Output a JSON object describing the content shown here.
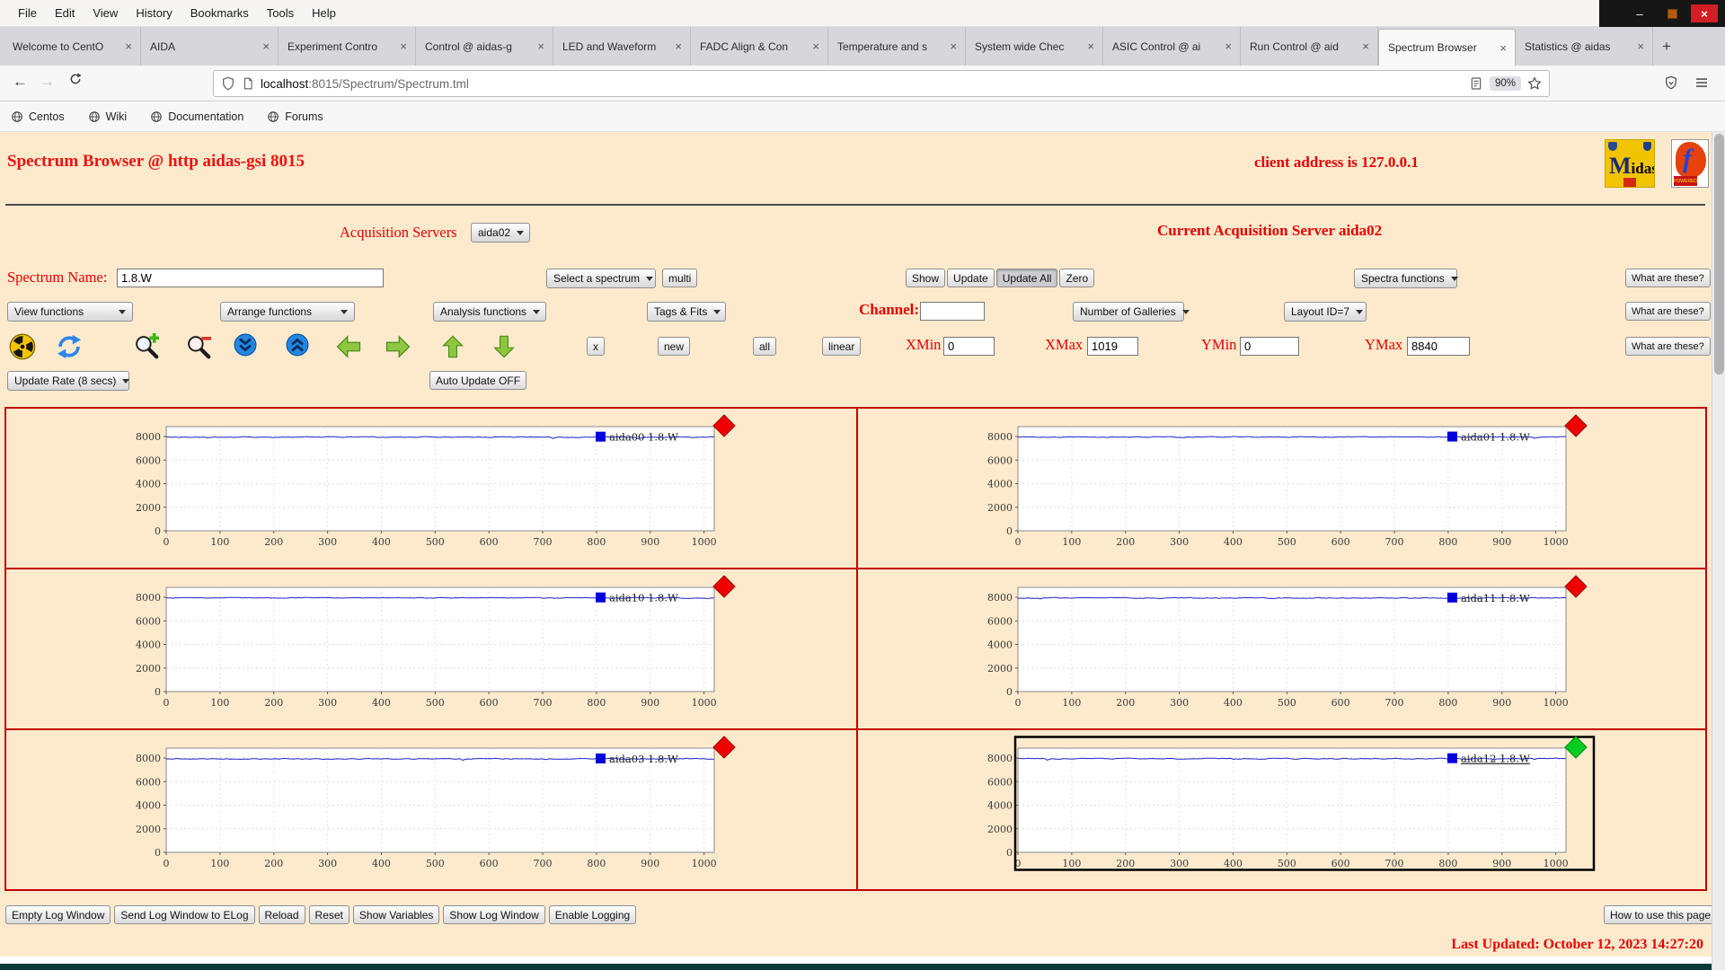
{
  "browser": {
    "menu": [
      "File",
      "Edit",
      "View",
      "History",
      "Bookmarks",
      "Tools",
      "Help"
    ],
    "tabs": [
      {
        "label": "Welcome to CentO",
        "active": false
      },
      {
        "label": "AIDA",
        "active": false
      },
      {
        "label": "Experiment Contro",
        "active": false
      },
      {
        "label": "Control @ aidas-g",
        "active": false
      },
      {
        "label": "LED and Waveform",
        "active": false
      },
      {
        "label": "FADC Align & Con",
        "active": false
      },
      {
        "label": "Temperature and s",
        "active": false
      },
      {
        "label": "System wide Chec",
        "active": false
      },
      {
        "label": "ASIC Control @ ai",
        "active": false
      },
      {
        "label": "Run Control @ aid",
        "active": false
      },
      {
        "label": "Spectrum Browser",
        "active": true
      },
      {
        "label": "Statistics @ aidas",
        "active": false
      }
    ],
    "new_tab_button": "+",
    "nav": {
      "url_host": "localhost",
      "url_rest": ":8015/Spectrum/Spectrum.tml",
      "zoom_badge": "90%"
    },
    "bookmarks": [
      "Centos",
      "Wiki",
      "Documentation",
      "Forums"
    ]
  },
  "page": {
    "title": "Spectrum Browser @ http aidas-gsi 8015",
    "client_address": "client address is 127.0.0.1",
    "acquisition_label": "Acquisition Servers",
    "acquisition_select": "aida02",
    "current_server": "Current Acquisition Server aida02",
    "spectrum_name_label": "Spectrum Name:",
    "spectrum_name_value": "1.8.W",
    "select_spectrum": "Select a spectrum",
    "multi_button": "multi",
    "show_buttons": [
      "Show",
      "Update",
      "Update All",
      "Zero"
    ],
    "active_show_button": "Update All",
    "spectra_functions": "Spectra functions",
    "what_are_these": "What are these?",
    "function_selects": [
      "View functions",
      "Arrange functions",
      "Analysis functions",
      "Tags & Fits"
    ],
    "channel_label": "Channel:",
    "channel_value": "",
    "galleries_select": "Number of Galleries",
    "layout_select": "Layout ID=7",
    "toolbar_icons": [
      "radiation",
      "refresh",
      "zoom-in",
      "zoom-out",
      "scroll-down",
      "scroll-up",
      "arrow-left",
      "arrow-right",
      "arrow-up",
      "arrow-down"
    ],
    "small_buttons": [
      "x",
      "new",
      "all",
      "linear"
    ],
    "axis_fields": [
      {
        "label": "XMin",
        "value": "0"
      },
      {
        "label": "XMax",
        "value": "1019"
      },
      {
        "label": "YMin",
        "value": "0"
      },
      {
        "label": "YMax",
        "value": "8840"
      }
    ],
    "update_rate_select": "Update Rate (8 secs)",
    "auto_update_button": "Auto Update OFF",
    "footer_buttons": [
      "Empty Log Window",
      "Send Log Window to ELog",
      "Reload",
      "Reset",
      "Show Variables",
      "Show Log Window",
      "Enable Logging"
    ],
    "help_button": "How to use this page",
    "last_updated": "Last Updated: October 12, 2023 14:27:20",
    "colors": {
      "accent_red": "#e60000",
      "page_background": "#fdeacd",
      "panel_border": "#c40000",
      "selected_border": "#000000"
    }
  },
  "chart_data": {
    "type": "line",
    "x_range": [
      0,
      1019
    ],
    "y_range": [
      0,
      8840
    ],
    "x_ticks": [
      0,
      100,
      200,
      300,
      400,
      500,
      600,
      700,
      800,
      900,
      1000
    ],
    "y_ticks": [
      0,
      2000,
      4000,
      6000,
      8000
    ],
    "line_color": "#2424cf",
    "legend_marker_color": "#0000dd",
    "panels": [
      {
        "legend": "aida00 1.8.W",
        "baseline": 7950,
        "marker_color": "#ee0000",
        "selected": false
      },
      {
        "legend": "aida01 1.8.W",
        "baseline": 7960,
        "marker_color": "#ee0000",
        "selected": false
      },
      {
        "legend": "aida10 1.8.W",
        "baseline": 7950,
        "marker_color": "#ee0000",
        "selected": false
      },
      {
        "legend": "aida11 1.8.W",
        "baseline": 7940,
        "marker_color": "#ee0000",
        "selected": false
      },
      {
        "legend": "aida03 1.8.W",
        "baseline": 7930,
        "marker_color": "#ee0000",
        "selected": false
      },
      {
        "legend": "aida12 1.8.W",
        "baseline": 7950,
        "marker_color": "#00cc22",
        "selected": true
      }
    ]
  }
}
